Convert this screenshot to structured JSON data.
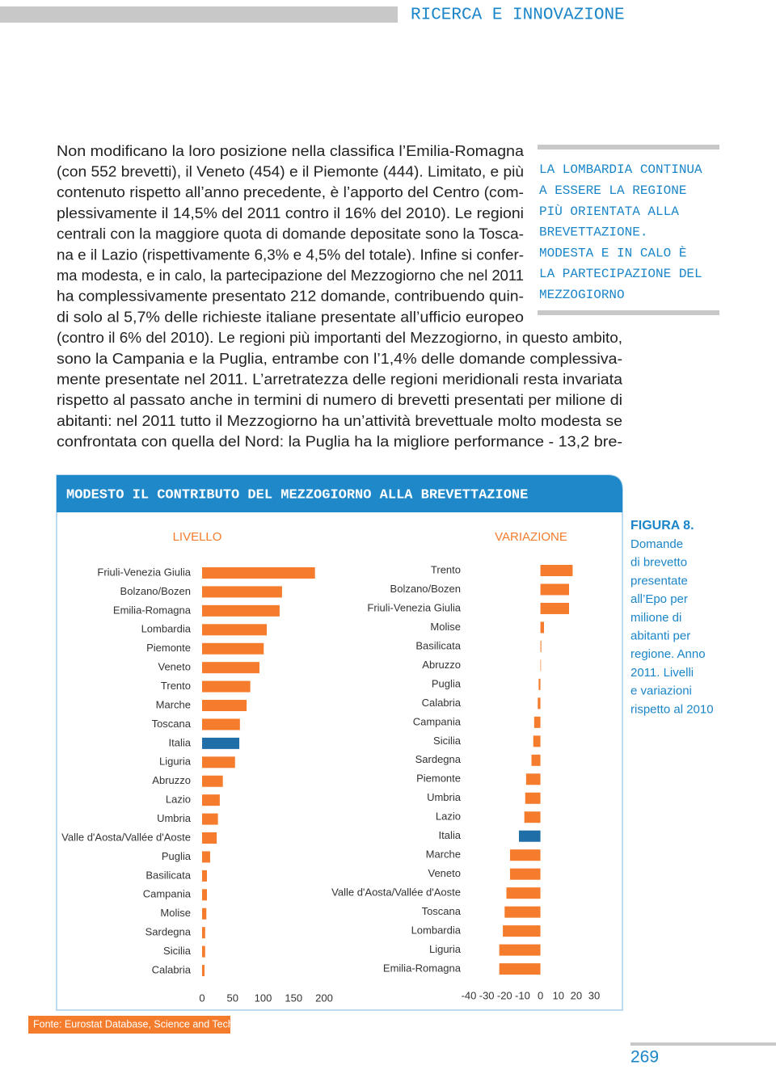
{
  "header": {
    "section": "RICERCA E INNOVAZIONE"
  },
  "body": {
    "lines": [
      "Non modificano la loro posizione nella classifica l’Emilia-Romagna",
      "(con 552 brevetti), il Veneto (454) e il Piemonte (444). Limitato, e più",
      "contenuto rispetto all’anno precedente, è l’apporto del Centro (com-",
      "plessivamente il 14,5% del 2011 contro il 16% del 2010). Le regioni",
      "centrali con la maggiore quota di domande depositate sono la Tosca-",
      "na e il Lazio (rispettivamente 6,3% e 4,5% del totale). Infine si confer-",
      "ma modesta, e in calo, la partecipazione del Mezzogiorno che nel 2011",
      "ha complessivamente presentato 212 domande, contribuendo quin-",
      "di solo al 5,7% delle richieste italiane presentate all’ufficio europeo",
      "(contro il 6% del 2010). Le regioni più importanti del Mezzogiorno, in questo ambito,",
      "sono la Campania e la Puglia, entrambe con l’1,4% delle domande complessiva-",
      "mente presentate nel 2011. L’arretratezza delle regioni meridionali resta invariata",
      "rispetto al passato anche in termini di numero di brevetti presentati per milione di",
      "abitanti: nel 2011 tutto il Mezzogiorno ha un’attività brevettuale molto modesta se",
      "confrontata con quella del Nord: la Puglia ha la migliore performance - 13,2 bre-"
    ]
  },
  "sidebar": {
    "lines": [
      "LA LOMBARDIA CONTINUA",
      "A ESSERE LA REGIONE",
      "PIÙ ORIENTATA ALLA",
      "BREVETTAZIONE.",
      "MODESTA E IN CALO È",
      "LA PARTECIPAZIONE DEL",
      "MEZZOGIORNO"
    ]
  },
  "figure": {
    "title": "MODESTO IL CONTRIBUTO DEL MEZZOGIORNO ALLA BREVETTAZIONE",
    "label": "FIGURA 8.",
    "caption_lines": [
      "Domande",
      "di brevetto",
      "presentate",
      "all’Epo per",
      "milione di",
      "abitanti per",
      "regione. Anno",
      "2011. Livelli",
      "e variazioni",
      "rispetto al 2010"
    ],
    "source": "Fonte: Eurostat Database, Science and Technology"
  },
  "chart_data": [
    {
      "type": "bar",
      "orientation": "horizontal",
      "title": "LIVELLO",
      "categories": [
        "Friuli-Venezia Giulia",
        "Bolzano/Bozen",
        "Emilia-Romagna",
        "Lombardia",
        "Piemonte",
        "Veneto",
        "Trento",
        "Marche",
        "Toscana",
        "Italia",
        "Liguria",
        "Abruzzo",
        "Lazio",
        "Umbria",
        "Valle d'Aosta/Vallée d'Aoste",
        "Puglia",
        "Basilicata",
        "Campania",
        "Molise",
        "Sardegna",
        "Sicilia",
        "Calabria"
      ],
      "values": [
        185,
        131,
        127,
        106,
        101,
        94,
        79,
        73,
        62,
        61,
        54,
        34,
        29,
        26,
        24,
        13.2,
        8,
        8,
        7,
        5,
        5,
        4
      ],
      "colors": [
        "#f47c2c",
        "#f47c2c",
        "#f47c2c",
        "#f47c2c",
        "#f47c2c",
        "#f47c2c",
        "#f47c2c",
        "#f47c2c",
        "#f47c2c",
        "#1f6ea8",
        "#f47c2c",
        "#f47c2c",
        "#f47c2c",
        "#f47c2c",
        "#f47c2c",
        "#f47c2c",
        "#f47c2c",
        "#f47c2c",
        "#f47c2c",
        "#f47c2c",
        "#f47c2c",
        "#f47c2c"
      ],
      "xlim": [
        0,
        200
      ],
      "xticks": [
        0,
        50,
        100,
        150,
        200
      ]
    },
    {
      "type": "bar",
      "orientation": "horizontal",
      "title": "VARIAZIONE",
      "categories": [
        "Trento",
        "Bolzano/Bozen",
        "Friuli-Venezia Giulia",
        "Molise",
        "Basilicata",
        "Abruzzo",
        "Puglia",
        "Calabria",
        "Campania",
        "Sicilia",
        "Sardegna",
        "Piemonte",
        "Umbria",
        "Lazio",
        "Italia",
        "Marche",
        "Veneto",
        "Valle d'Aosta/Vallée d'Aoste",
        "Toscana",
        "Lombardia",
        "Liguria",
        "Emilia-Romagna"
      ],
      "values": [
        18,
        16,
        16,
        2,
        0.5,
        0.3,
        -1,
        -1.5,
        -3.5,
        -4,
        -5,
        -8,
        -8.5,
        -9,
        -12,
        -17,
        -17,
        -19,
        -20,
        -21,
        -23,
        -23
      ],
      "colors": [
        "#f47c2c",
        "#f47c2c",
        "#f47c2c",
        "#f47c2c",
        "#f47c2c",
        "#f47c2c",
        "#f47c2c",
        "#f47c2c",
        "#f47c2c",
        "#f47c2c",
        "#f47c2c",
        "#f47c2c",
        "#f47c2c",
        "#f47c2c",
        "#1f6ea8",
        "#f47c2c",
        "#f47c2c",
        "#f47c2c",
        "#f47c2c",
        "#f47c2c",
        "#f47c2c",
        "#f47c2c"
      ],
      "xlim": [
        -40,
        30
      ],
      "xticks": [
        -40,
        -30,
        -20,
        -10,
        0,
        10,
        20,
        30
      ]
    }
  ],
  "page_number": "269"
}
